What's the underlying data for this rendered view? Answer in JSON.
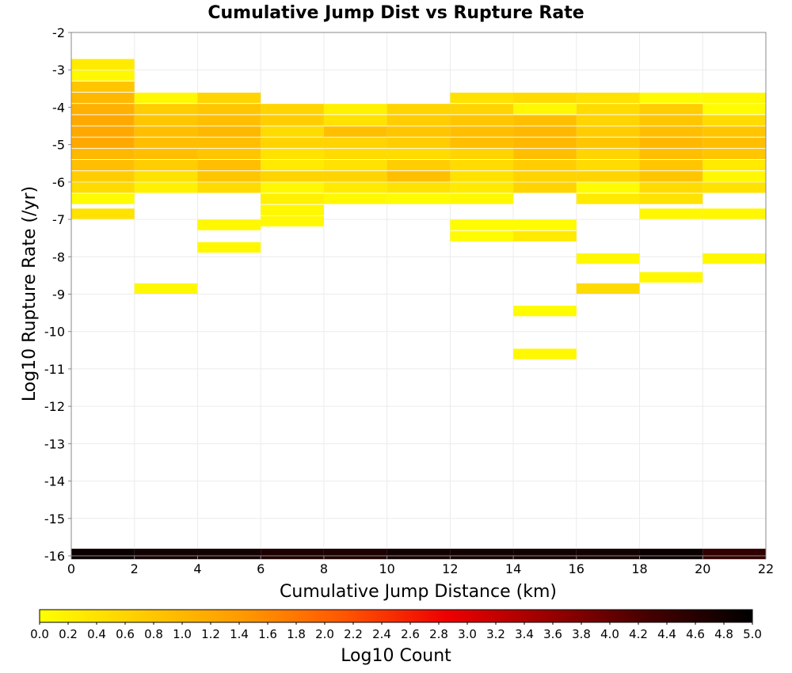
{
  "chart_data": {
    "type": "heatmap",
    "title": "Cumulative Jump Dist vs Rupture Rate",
    "xlabel": "Cumulative Jump Distance (km)",
    "ylabel": "Log10 Rupture Rate (/yr)",
    "xlim": [
      0,
      22
    ],
    "ylim": [
      -16,
      -2
    ],
    "x_ticks": [
      "0",
      "2",
      "4",
      "6",
      "8",
      "10",
      "12",
      "14",
      "16",
      "18",
      "20",
      "22"
    ],
    "y_ticks": [
      "-2",
      "-3",
      "-4",
      "-5",
      "-6",
      "-7",
      "-8",
      "-9",
      "-10",
      "-11",
      "-12",
      "-13",
      "-14",
      "-15",
      "-16"
    ],
    "x_bin_width": 2,
    "y_bin_height": 0.28,
    "grid": true,
    "colorbar": {
      "label": "Log10 Count",
      "range": [
        0.0,
        5.0
      ],
      "ticks": [
        "0.0",
        "0.2",
        "0.4",
        "0.6",
        "0.8",
        "1.0",
        "1.2",
        "1.4",
        "1.6",
        "1.8",
        "2.0",
        "2.2",
        "2.4",
        "2.6",
        "2.8",
        "3.0",
        "3.2",
        "3.4",
        "3.6",
        "3.8",
        "4.0",
        "4.2",
        "4.4",
        "4.6",
        "4.8",
        "5.0"
      ],
      "colors": [
        "#ffff00",
        "#ffcc00",
        "#ff9900",
        "#ff5500",
        "#ee0000",
        "#990000",
        "#440000",
        "#000000"
      ]
    },
    "columns": [
      {
        "x": 0,
        "cells": [
          [
            -2.85,
            0.3
          ],
          [
            -3.15,
            0.1
          ],
          [
            -3.45,
            0.8
          ],
          [
            -3.75,
            1.0
          ],
          [
            -4.05,
            1.1
          ],
          [
            -4.35,
            1.2
          ],
          [
            -4.65,
            1.2
          ],
          [
            -4.95,
            1.2
          ],
          [
            -5.25,
            1.0
          ],
          [
            -5.55,
            0.9
          ],
          [
            -5.85,
            0.7
          ],
          [
            -6.15,
            0.5
          ],
          [
            -6.45,
            0.05
          ],
          [
            -6.85,
            0.4
          ],
          [
            -15.95,
            4.9
          ]
        ]
      },
      {
        "x": 2,
        "cells": [
          [
            -3.75,
            0.1
          ],
          [
            -4.05,
            0.7
          ],
          [
            -4.35,
            0.8
          ],
          [
            -4.65,
            0.9
          ],
          [
            -4.95,
            0.9
          ],
          [
            -5.25,
            0.9
          ],
          [
            -5.55,
            0.7
          ],
          [
            -5.85,
            0.4
          ],
          [
            -6.15,
            0.2
          ],
          [
            -8.85,
            0.1
          ],
          [
            -15.95,
            4.8
          ]
        ]
      },
      {
        "x": 4,
        "cells": [
          [
            -3.75,
            0.6
          ],
          [
            -4.05,
            0.8
          ],
          [
            -4.35,
            0.9
          ],
          [
            -4.65,
            1.0
          ],
          [
            -4.95,
            0.9
          ],
          [
            -5.25,
            0.8
          ],
          [
            -5.55,
            0.9
          ],
          [
            -5.85,
            0.8
          ],
          [
            -6.15,
            0.5
          ],
          [
            -7.15,
            0.1
          ],
          [
            -7.75,
            0.1
          ],
          [
            -15.95,
            4.8
          ]
        ]
      },
      {
        "x": 6,
        "cells": [
          [
            -4.05,
            0.6
          ],
          [
            -4.35,
            0.7
          ],
          [
            -4.65,
            0.5
          ],
          [
            -4.95,
            0.6
          ],
          [
            -5.25,
            0.4
          ],
          [
            -5.55,
            0.3
          ],
          [
            -5.85,
            0.6
          ],
          [
            -6.15,
            0.1
          ],
          [
            -6.45,
            0.2
          ],
          [
            -6.75,
            0.1
          ],
          [
            -7.05,
            0.1
          ],
          [
            -15.95,
            4.7
          ]
        ]
      },
      {
        "x": 8,
        "cells": [
          [
            -4.05,
            0.2
          ],
          [
            -4.35,
            0.4
          ],
          [
            -4.65,
            0.9
          ],
          [
            -4.95,
            0.6
          ],
          [
            -5.25,
            0.5
          ],
          [
            -5.55,
            0.4
          ],
          [
            -5.85,
            0.6
          ],
          [
            -6.15,
            0.3
          ],
          [
            -6.45,
            0.1
          ],
          [
            -15.95,
            4.7
          ]
        ]
      },
      {
        "x": 10,
        "cells": [
          [
            -4.05,
            0.6
          ],
          [
            -4.35,
            0.7
          ],
          [
            -4.65,
            0.8
          ],
          [
            -4.95,
            0.7
          ],
          [
            -5.25,
            0.5
          ],
          [
            -5.55,
            0.7
          ],
          [
            -5.85,
            0.9
          ],
          [
            -6.15,
            0.4
          ],
          [
            -6.45,
            0.05
          ],
          [
            -15.95,
            4.8
          ]
        ]
      },
      {
        "x": 12,
        "cells": [
          [
            -3.75,
            0.4
          ],
          [
            -4.05,
            0.6
          ],
          [
            -4.35,
            0.8
          ],
          [
            -4.65,
            0.9
          ],
          [
            -4.95,
            0.9
          ],
          [
            -5.25,
            0.6
          ],
          [
            -5.55,
            0.5
          ],
          [
            -5.85,
            0.4
          ],
          [
            -6.15,
            0.3
          ],
          [
            -6.45,
            0.1
          ],
          [
            -7.15,
            0.05
          ],
          [
            -7.45,
            0.05
          ],
          [
            -15.95,
            4.8
          ]
        ]
      },
      {
        "x": 14,
        "cells": [
          [
            -3.75,
            0.5
          ],
          [
            -4.05,
            0.1
          ],
          [
            -4.35,
            0.9
          ],
          [
            -4.65,
            1.0
          ],
          [
            -4.95,
            1.0
          ],
          [
            -5.25,
            0.9
          ],
          [
            -5.55,
            0.7
          ],
          [
            -5.85,
            0.6
          ],
          [
            -6.15,
            0.6
          ],
          [
            -7.15,
            0.05
          ],
          [
            -7.45,
            0.3
          ],
          [
            -9.45,
            0.05
          ],
          [
            -10.6,
            0.1
          ],
          [
            -15.95,
            4.8
          ]
        ]
      },
      {
        "x": 16,
        "cells": [
          [
            -3.75,
            0.4
          ],
          [
            -4.05,
            0.5
          ],
          [
            -4.35,
            0.6
          ],
          [
            -4.65,
            0.7
          ],
          [
            -4.95,
            0.8
          ],
          [
            -5.25,
            0.6
          ],
          [
            -5.55,
            0.5
          ],
          [
            -5.85,
            0.6
          ],
          [
            -6.15,
            0.05
          ],
          [
            -6.45,
            0.3
          ],
          [
            -8.05,
            0.1
          ],
          [
            -8.85,
            0.5
          ],
          [
            -15.95,
            4.8
          ]
        ]
      },
      {
        "x": 18,
        "cells": [
          [
            -3.75,
            0.05
          ],
          [
            -4.05,
            0.7
          ],
          [
            -4.35,
            0.8
          ],
          [
            -4.65,
            0.9
          ],
          [
            -4.95,
            1.0
          ],
          [
            -5.25,
            0.9
          ],
          [
            -5.55,
            0.8
          ],
          [
            -5.85,
            0.8
          ],
          [
            -6.15,
            0.5
          ],
          [
            -6.45,
            0.4
          ],
          [
            -6.85,
            0.1
          ],
          [
            -8.55,
            0.1
          ],
          [
            -15.95,
            4.9
          ]
        ]
      },
      {
        "x": 20,
        "cells": [
          [
            -3.75,
            0.1
          ],
          [
            -4.05,
            0.05
          ],
          [
            -4.35,
            0.5
          ],
          [
            -4.65,
            0.8
          ],
          [
            -4.95,
            0.9
          ],
          [
            -5.25,
            0.8
          ],
          [
            -5.55,
            0.3
          ],
          [
            -5.85,
            0.1
          ],
          [
            -6.15,
            0.4
          ],
          [
            -6.85,
            0.1
          ],
          [
            -8.05,
            0.1
          ],
          [
            -15.95,
            4.5
          ]
        ]
      }
    ]
  }
}
